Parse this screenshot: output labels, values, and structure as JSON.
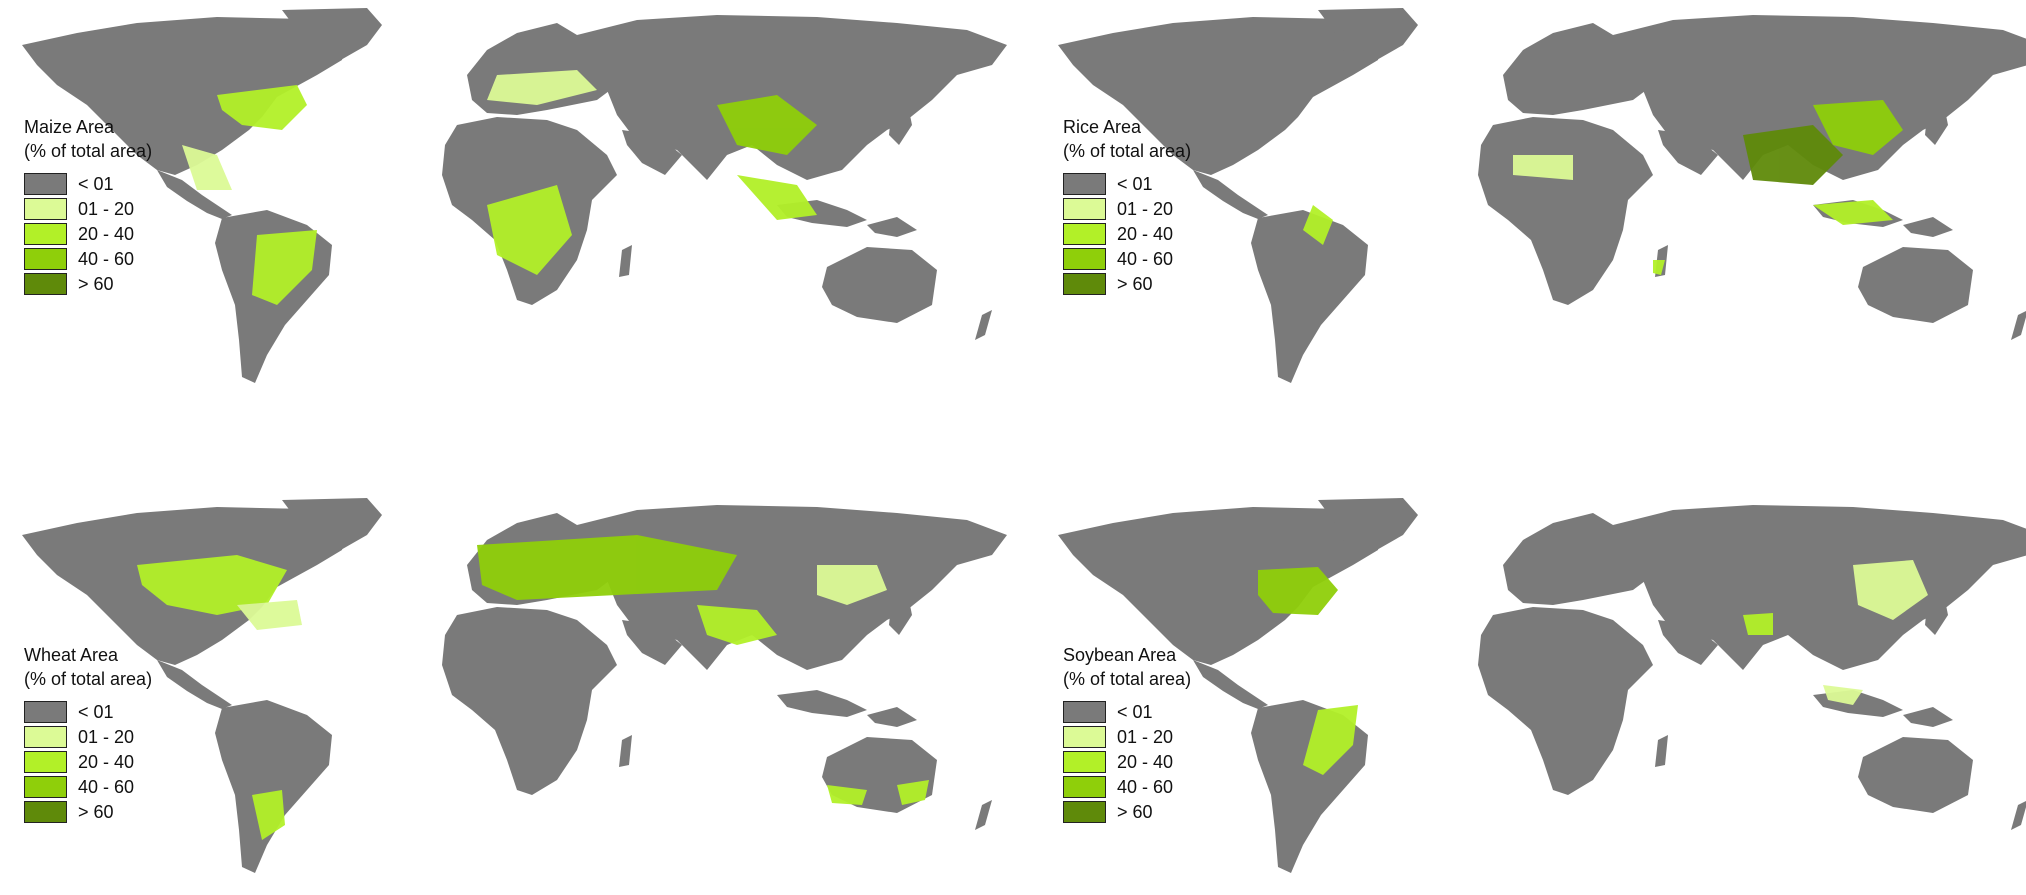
{
  "colors": {
    "land": "#7a7a7a",
    "background": "#ffffff",
    "class_lt01": "#7a7a7a",
    "class_01_20": "#dcfa96",
    "class_20_40": "#b2f028",
    "class_40_60": "#8fcf0a",
    "class_gt60": "#5f8a0a"
  },
  "legend_classes": [
    "< 01",
    "01 - 20",
    "20 - 40",
    "40 - 60",
    "> 60"
  ],
  "legend_icon_names": [
    "swatch-lt01",
    "swatch-01-20",
    "swatch-20-40",
    "swatch-40-60",
    "swatch-gt60"
  ],
  "panels": [
    {
      "id": "maize",
      "title": "Maize Area",
      "subtitle": "(% of total area)"
    },
    {
      "id": "rice",
      "title": "Rice Area",
      "subtitle": "(% of total area)"
    },
    {
      "id": "wheat",
      "title": "Wheat Area",
      "subtitle": "(% of total area)"
    },
    {
      "id": "soybean",
      "title": "Soybean Area",
      "subtitle": "(% of total area)"
    }
  ]
}
